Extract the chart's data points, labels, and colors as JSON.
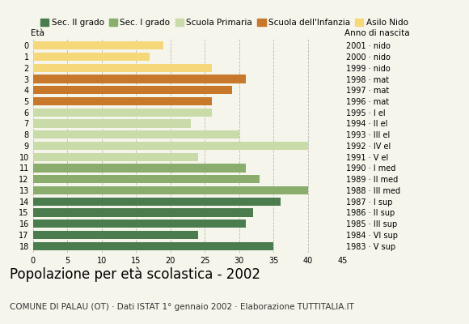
{
  "ages": [
    18,
    17,
    16,
    15,
    14,
    13,
    12,
    11,
    10,
    9,
    8,
    7,
    6,
    5,
    4,
    3,
    2,
    1,
    0
  ],
  "values": [
    35,
    24,
    31,
    32,
    36,
    40,
    33,
    31,
    24,
    40,
    30,
    23,
    26,
    26,
    29,
    31,
    26,
    17,
    19
  ],
  "anno_nascita": [
    "1983 · V sup",
    "1984 · VI sup",
    "1985 · III sup",
    "1986 · II sup",
    "1987 · I sup",
    "1988 · III med",
    "1989 · II med",
    "1990 · I med",
    "1991 · V el",
    "1992 · IV el",
    "1993 · III el",
    "1994 · II el",
    "1995 · I el",
    "1996 · mat",
    "1997 · mat",
    "1998 · mat",
    "1999 · nido",
    "2000 · nido",
    "2001 · nido"
  ],
  "colors": {
    "18": "#4a7c4e",
    "17": "#4a7c4e",
    "16": "#4a7c4e",
    "15": "#4a7c4e",
    "14": "#4a7c4e",
    "13": "#8aad6e",
    "12": "#8aad6e",
    "11": "#8aad6e",
    "10": "#c8dba8",
    "9": "#c8dba8",
    "8": "#c8dba8",
    "7": "#c8dba8",
    "6": "#c8dba8",
    "5": "#c8782a",
    "4": "#c8782a",
    "3": "#c8782a",
    "2": "#f5d87a",
    "1": "#f5d87a",
    "0": "#f5d87a"
  },
  "legend_labels": [
    "Sec. II grado",
    "Sec. I grado",
    "Scuola Primaria",
    "Scuola dell'Infanzia",
    "Asilo Nido"
  ],
  "legend_colors": [
    "#4a7c4e",
    "#8aad6e",
    "#c8dba8",
    "#c8782a",
    "#f5d87a"
  ],
  "title": "Popolazione per età scolastica - 2002",
  "subtitle": "COMUNE DI PALAU (OT) · Dati ISTAT 1° gennaio 2002 · Elaborazione TUTTITALIA.IT",
  "xlim": [
    0,
    45
  ],
  "xticks": [
    0,
    5,
    10,
    15,
    20,
    25,
    30,
    35,
    40,
    45
  ],
  "bg_color": "#f5f5eb",
  "bar_height": 0.75,
  "title_fontsize": 12,
  "subtitle_fontsize": 7.5,
  "axis_label_fontsize": 7.5,
  "tick_fontsize": 7,
  "legend_fontsize": 7.5
}
